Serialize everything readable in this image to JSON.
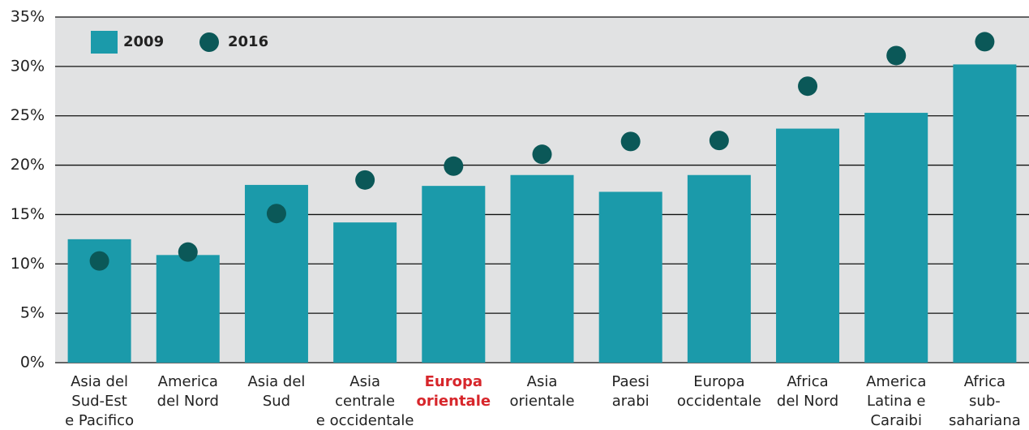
{
  "chart_data": {
    "type": "bar",
    "categories": [
      "Asia del\nSud-Est\ne Pacifico",
      "America\ndel Nord",
      "Asia del\nSud",
      "Asia\ncentrale\ne occidentale",
      "Europa\norientale",
      "Asia\norientale",
      "Paesi\narabi",
      "Europa\noccidentale",
      "Africa\ndel Nord",
      "America\nLatina e\nCaraibi",
      "Africa\nsub-\nsahariana"
    ],
    "series": [
      {
        "name": "2009",
        "type": "bar",
        "color": "#1b9aaa",
        "values": [
          12.5,
          10.9,
          18.0,
          14.2,
          17.9,
          19.0,
          17.3,
          19.0,
          23.7,
          25.3,
          30.2
        ]
      },
      {
        "name": "2016",
        "type": "scatter",
        "color": "#0b5858",
        "values": [
          10.3,
          11.2,
          15.1,
          18.5,
          19.9,
          21.1,
          22.4,
          22.5,
          28.0,
          31.1,
          32.5
        ]
      }
    ],
    "ylim": [
      0,
      35
    ],
    "yticks": [
      {
        "value": 0,
        "label": "0%"
      },
      {
        "value": 5,
        "label": "5%"
      },
      {
        "value": 10,
        "label": "10%"
      },
      {
        "value": 15,
        "label": "15%"
      },
      {
        "value": 20,
        "label": "20%"
      },
      {
        "value": 25,
        "label": "25%"
      },
      {
        "value": 30,
        "label": "30%"
      },
      {
        "value": 35,
        "label": "35%"
      }
    ],
    "grid": true,
    "legend": "top-left",
    "highlight": {
      "category": 4,
      "color": "#d7262b"
    }
  }
}
